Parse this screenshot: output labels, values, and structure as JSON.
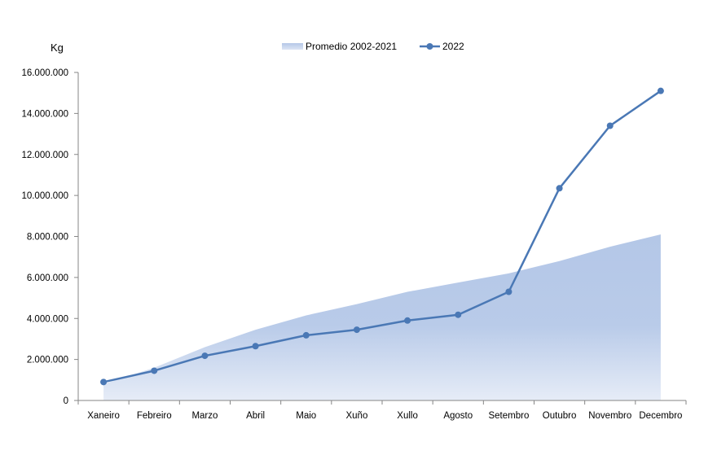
{
  "chart_data": {
    "type": "line",
    "ylabel": "Kg",
    "ylim": [
      0,
      16000000
    ],
    "yticks": [
      0,
      2000000,
      4000000,
      6000000,
      8000000,
      10000000,
      12000000,
      14000000,
      16000000
    ],
    "ytick_labels": [
      "0",
      "2.000.000",
      "4.000.000",
      "6.000.000",
      "8.000.000",
      "10.000.000",
      "12.000.000",
      "14.000.000",
      "16.000.000"
    ],
    "categories": [
      "Xaneiro",
      "Febreiro",
      "Marzo",
      "Abril",
      "Maio",
      "Xuño",
      "Xullo",
      "Agosto",
      "Setembro",
      "Outubro",
      "Novembro",
      "Decembro"
    ],
    "legend_position": "top",
    "grid": false,
    "series": [
      {
        "name": "Promedio 2002-2021",
        "kind": "area",
        "color": "#b4c7e7",
        "values": [
          800000,
          1600000,
          2600000,
          3450000,
          4150000,
          4700000,
          5300000,
          5750000,
          6200000,
          6800000,
          7500000,
          8100000
        ]
      },
      {
        "name": "2022",
        "kind": "line",
        "color": "#4a78b5",
        "values": [
          900000,
          1450000,
          2180000,
          2650000,
          3180000,
          3450000,
          3900000,
          4180000,
          5300000,
          10350000,
          13400000,
          15100000
        ]
      }
    ]
  }
}
